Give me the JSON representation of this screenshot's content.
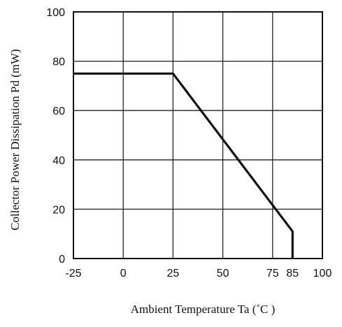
{
  "chart_data": {
    "type": "line",
    "title": "",
    "xlabel": "Ambient Temperature Ta (˚C   )",
    "ylabel": "Collector Power Dissipation Pd (mW)",
    "xlim": [
      -25,
      100
    ],
    "ylim": [
      0,
      100
    ],
    "x_ticks": [
      -25,
      0,
      25,
      50,
      75,
      85,
      100
    ],
    "x_grid": [
      -25,
      0,
      25,
      50,
      75,
      100
    ],
    "y_ticks": [
      0,
      20,
      40,
      60,
      80,
      100
    ],
    "grid": true,
    "series": [
      {
        "x": [
          -25,
          25,
          85,
          85
        ],
        "y": [
          75,
          75,
          11,
          0
        ]
      }
    ],
    "colors": {
      "line": "#111111",
      "grid": "#222222",
      "frame": "#111111"
    }
  }
}
